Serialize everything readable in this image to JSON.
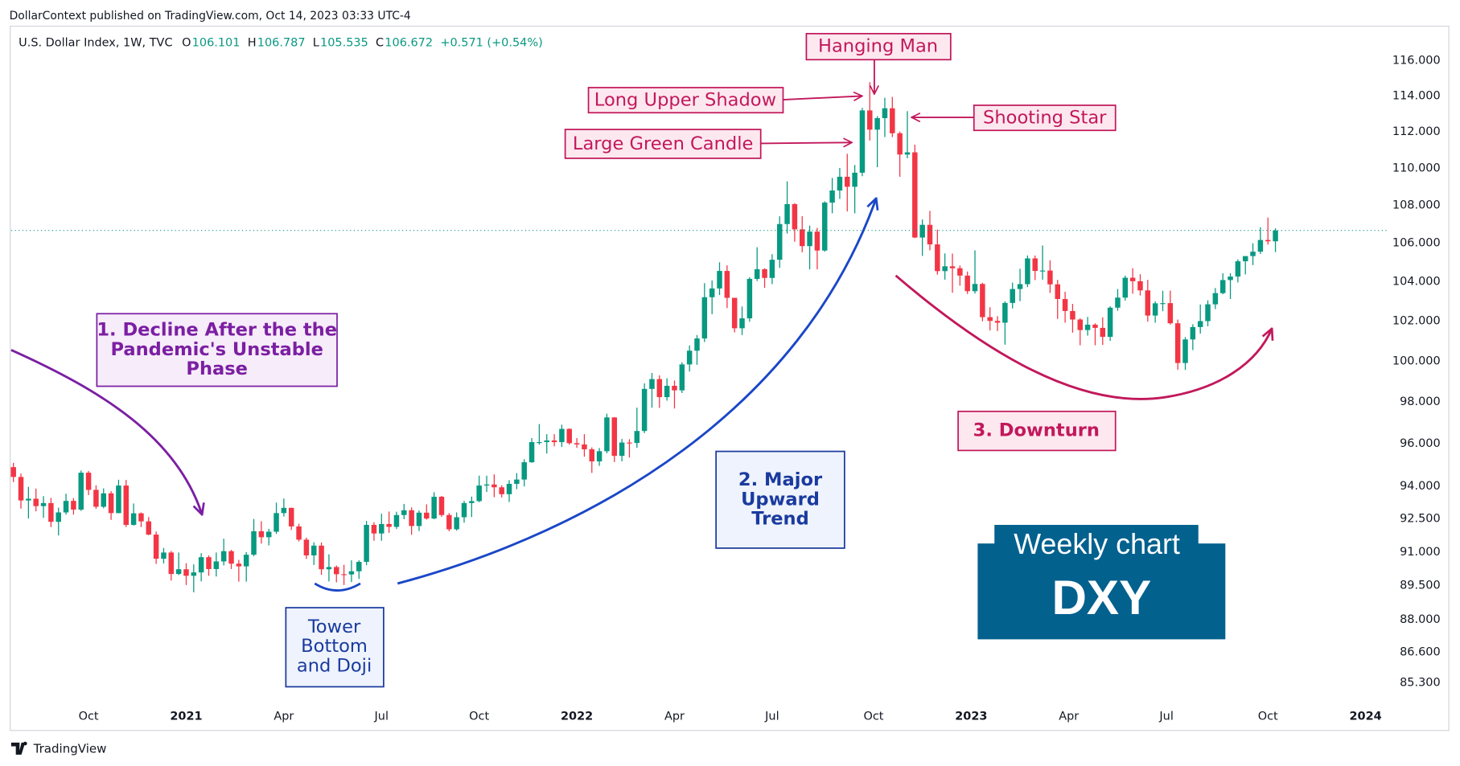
{
  "top_note": "DollarContext published on TradingView.com, Oct 14, 2023 03:33 UTC-4",
  "footer": {
    "brand": "TradingView"
  },
  "chart_data": {
    "type": "candlestick",
    "header": {
      "symbol": "U.S. Dollar Index, 1W, TVC",
      "items": [
        {
          "label": "O",
          "value": "106.101"
        },
        {
          "label": "H",
          "value": "106.787"
        },
        {
          "label": "L",
          "value": "105.535"
        },
        {
          "label": "C",
          "value": "106.672"
        }
      ],
      "change": "+0.571 (+0.54%)"
    },
    "up_color": "#089981",
    "down_color": "#f23645",
    "log_scale": true,
    "grid": false,
    "last_price_line": true,
    "ylim": [
      84.4,
      118
    ],
    "yticks": [
      {
        "value": 116,
        "label": "116.000"
      },
      {
        "value": 114,
        "label": "114.000"
      },
      {
        "value": 112,
        "label": "112.000"
      },
      {
        "value": 110,
        "label": "110.000"
      },
      {
        "value": 108,
        "label": "108.000"
      },
      {
        "value": 106,
        "label": "106.000"
      },
      {
        "value": 104,
        "label": "104.000"
      },
      {
        "value": 102,
        "label": "102.000"
      },
      {
        "value": 100,
        "label": "100.000"
      },
      {
        "value": 98,
        "label": "98.000"
      },
      {
        "value": 96,
        "label": "96.000"
      },
      {
        "value": 94,
        "label": "94.000"
      },
      {
        "value": 92.5,
        "label": "92.500"
      },
      {
        "value": 91,
        "label": "91.000"
      },
      {
        "value": 89.5,
        "label": "89.500"
      },
      {
        "value": 88,
        "label": "88.000"
      },
      {
        "value": 86.6,
        "label": "86.600"
      },
      {
        "value": 85.3,
        "label": "85.300"
      }
    ],
    "xlim": [
      -0.3,
      182.9
    ],
    "xticks": [
      {
        "value": 10,
        "label": "Oct"
      },
      {
        "value": 23,
        "label": "2021"
      },
      {
        "value": 36,
        "label": "Apr"
      },
      {
        "value": 49,
        "label": "Jul"
      },
      {
        "value": 62,
        "label": "Oct"
      },
      {
        "value": 75,
        "label": "2022"
      },
      {
        "value": 88,
        "label": "Apr"
      },
      {
        "value": 101,
        "label": "Jul"
      },
      {
        "value": 114.5,
        "label": "Oct"
      },
      {
        "value": 127.5,
        "label": "2023"
      },
      {
        "value": 140.5,
        "label": "Apr"
      },
      {
        "value": 153.5,
        "label": "Jul"
      },
      {
        "value": 167,
        "label": "Oct"
      },
      {
        "value": 180,
        "label": "2024"
      }
    ],
    "candles": [
      [
        94.9,
        95.1,
        94.2,
        94.44
      ],
      [
        94.44,
        94.6,
        92.98,
        93.35
      ],
      [
        93.35,
        93.98,
        92.52,
        93.43
      ],
      [
        93.43,
        93.9,
        92.85,
        93.09
      ],
      [
        93.09,
        93.55,
        92.55,
        93.23
      ],
      [
        93.23,
        93.47,
        92.13,
        92.37
      ],
      [
        92.37,
        93.02,
        91.75,
        92.8
      ],
      [
        92.8,
        93.66,
        92.7,
        93.33
      ],
      [
        93.33,
        93.46,
        92.7,
        92.93
      ],
      [
        92.93,
        94.74,
        92.87,
        94.64
      ],
      [
        94.64,
        94.72,
        93.6,
        93.84
      ],
      [
        93.84,
        94.05,
        92.97,
        93.06
      ],
      [
        93.06,
        93.91,
        92.99,
        93.68
      ],
      [
        93.68,
        93.78,
        92.46,
        92.77
      ],
      [
        92.77,
        94.31,
        92.76,
        94.04
      ],
      [
        94.04,
        94.3,
        92.13,
        92.23
      ],
      [
        92.23,
        93.21,
        92.2,
        92.76
      ],
      [
        92.76,
        92.8,
        92.13,
        92.39
      ],
      [
        92.39,
        92.59,
        91.76,
        91.79
      ],
      [
        91.79,
        91.93,
        90.47,
        90.7
      ],
      [
        90.7,
        91.19,
        90.49,
        90.98
      ],
      [
        90.98,
        91.05,
        89.73,
        90.02
      ],
      [
        90.02,
        90.98,
        89.97,
        90.23
      ],
      [
        90.23,
        90.5,
        89.53,
        89.94
      ],
      [
        89.94,
        90.45,
        89.21,
        90.09
      ],
      [
        90.09,
        90.95,
        89.69,
        90.77
      ],
      [
        90.77,
        90.85,
        89.94,
        90.24
      ],
      [
        90.24,
        90.98,
        89.91,
        90.58
      ],
      [
        90.58,
        91.6,
        90.4,
        91.04
      ],
      [
        91.04,
        91.1,
        90.24,
        90.48
      ],
      [
        90.48,
        90.65,
        89.68,
        90.36
      ],
      [
        90.36,
        91.0,
        89.68,
        90.88
      ],
      [
        90.88,
        92.5,
        90.81,
        91.94
      ],
      [
        91.94,
        92.4,
        91.38,
        91.67
      ],
      [
        91.67,
        92.05,
        91.3,
        91.92
      ],
      [
        91.92,
        93.25,
        91.82,
        92.77
      ],
      [
        92.77,
        93.44,
        92.61,
        93.01
      ],
      [
        93.01,
        93.02,
        92.0,
        92.16
      ],
      [
        92.16,
        92.28,
        91.48,
        91.56
      ],
      [
        91.56,
        91.65,
        90.69,
        90.85
      ],
      [
        90.85,
        91.44,
        90.42,
        91.29
      ],
      [
        91.29,
        91.43,
        89.98,
        90.23
      ],
      [
        90.23,
        90.9,
        89.69,
        90.33
      ],
      [
        90.33,
        90.4,
        89.65,
        90.01
      ],
      [
        90.01,
        90.43,
        89.53,
        90.0
      ],
      [
        90.0,
        90.63,
        89.66,
        90.14
      ],
      [
        90.14,
        90.63,
        89.8,
        90.56
      ],
      [
        90.56,
        92.41,
        90.41,
        92.23
      ],
      [
        92.23,
        92.35,
        91.51,
        91.84
      ],
      [
        91.84,
        92.74,
        91.51,
        92.27
      ],
      [
        92.27,
        92.84,
        91.87,
        92.14
      ],
      [
        92.14,
        92.83,
        92.04,
        92.68
      ],
      [
        92.68,
        93.19,
        92.49,
        92.9
      ],
      [
        92.9,
        93.03,
        91.78,
        92.18
      ],
      [
        92.18,
        92.89,
        91.95,
        92.79
      ],
      [
        92.79,
        93.17,
        92.47,
        92.52
      ],
      [
        92.52,
        93.73,
        92.49,
        93.52
      ],
      [
        93.52,
        93.56,
        92.6,
        92.68
      ],
      [
        92.68,
        92.77,
        91.94,
        92.03
      ],
      [
        92.03,
        92.8,
        91.97,
        92.58
      ],
      [
        92.58,
        93.33,
        92.33,
        93.23
      ],
      [
        93.23,
        93.53,
        92.59,
        93.32
      ],
      [
        93.32,
        94.5,
        93.27,
        94.04
      ],
      [
        94.04,
        94.5,
        93.74,
        94.09
      ],
      [
        94.09,
        94.56,
        93.5,
        93.96
      ],
      [
        93.96,
        94.05,
        93.49,
        93.64
      ],
      [
        93.64,
        94.29,
        93.28,
        94.12
      ],
      [
        94.12,
        94.62,
        93.87,
        94.32
      ],
      [
        94.32,
        95.27,
        94.0,
        95.13
      ],
      [
        95.13,
        96.27,
        95.1,
        96.08
      ],
      [
        96.08,
        96.94,
        95.96,
        96.08
      ],
      [
        96.08,
        96.46,
        95.54,
        96.16
      ],
      [
        96.16,
        96.46,
        95.88,
        96.08
      ],
      [
        96.08,
        96.91,
        95.85,
        96.71
      ],
      [
        96.71,
        96.74,
        95.96,
        96.03
      ],
      [
        96.03,
        96.27,
        95.81,
        95.97
      ],
      [
        95.97,
        96.46,
        95.39,
        95.74
      ],
      [
        95.74,
        95.83,
        94.63,
        95.17
      ],
      [
        95.17,
        95.8,
        94.96,
        95.65
      ],
      [
        95.65,
        97.44,
        95.55,
        97.26
      ],
      [
        97.26,
        97.27,
        95.14,
        95.43
      ],
      [
        95.43,
        96.23,
        95.17,
        96.06
      ],
      [
        96.06,
        96.22,
        95.35,
        96.04
      ],
      [
        96.04,
        97.73,
        95.81,
        96.61
      ],
      [
        96.61,
        98.91,
        96.51,
        98.64
      ],
      [
        98.64,
        99.42,
        97.73,
        99.12
      ],
      [
        99.12,
        99.3,
        97.72,
        98.24
      ],
      [
        98.24,
        99.16,
        98.07,
        98.79
      ],
      [
        98.79,
        99.05,
        97.69,
        98.57
      ],
      [
        98.57,
        99.95,
        98.44,
        99.84
      ],
      [
        99.84,
        100.78,
        99.49,
        100.52
      ],
      [
        100.52,
        101.3,
        99.82,
        101.13
      ],
      [
        101.13,
        103.93,
        100.95,
        103.21
      ],
      [
        103.21,
        104.07,
        102.35,
        103.66
      ],
      [
        103.66,
        105.01,
        103.32,
        104.56
      ],
      [
        104.56,
        104.85,
        102.66,
        103.18
      ],
      [
        103.18,
        103.18,
        101.43,
        101.64
      ],
      [
        101.64,
        102.74,
        101.3,
        102.14
      ],
      [
        102.14,
        104.24,
        101.97,
        104.15
      ],
      [
        104.15,
        105.79,
        104.04,
        104.65
      ],
      [
        104.65,
        104.7,
        103.69,
        104.2
      ],
      [
        104.2,
        105.43,
        103.88,
        105.14
      ],
      [
        105.14,
        107.42,
        104.72,
        107.01
      ],
      [
        107.01,
        109.29,
        106.51,
        108.07
      ],
      [
        108.07,
        108.12,
        106.08,
        106.73
      ],
      [
        106.73,
        107.43,
        105.53,
        105.85
      ],
      [
        105.85,
        106.93,
        104.64,
        106.61
      ],
      [
        106.61,
        106.81,
        104.64,
        105.62
      ],
      [
        105.62,
        108.22,
        105.56,
        108.15
      ],
      [
        108.15,
        109.48,
        107.58,
        108.8
      ],
      [
        108.8,
        110.02,
        108.35,
        109.54
      ],
      [
        109.54,
        110.79,
        107.68,
        109.0
      ],
      [
        109.0,
        110.18,
        107.58,
        109.76
      ],
      [
        109.76,
        113.33,
        109.57,
        113.19
      ],
      [
        113.19,
        114.78,
        111.52,
        112.12
      ],
      [
        112.12,
        112.87,
        110.06,
        112.76
      ],
      [
        112.76,
        113.9,
        111.71,
        113.31
      ],
      [
        113.31,
        113.95,
        111.71,
        111.92
      ],
      [
        111.92,
        112.01,
        109.54,
        110.75
      ],
      [
        110.75,
        113.15,
        110.55,
        110.87
      ],
      [
        110.87,
        111.29,
        106.27,
        106.3
      ],
      [
        106.3,
        107.25,
        105.34,
        106.97
      ],
      [
        106.97,
        107.71,
        105.63,
        105.94
      ],
      [
        105.94,
        106.72,
        104.37,
        104.55
      ],
      [
        104.55,
        105.47,
        104.11,
        104.8
      ],
      [
        104.8,
        105.46,
        103.44,
        104.7
      ],
      [
        104.7,
        104.84,
        103.8,
        104.32
      ],
      [
        104.32,
        104.53,
        103.38,
        103.52
      ],
      [
        103.52,
        105.63,
        103.4,
        103.89
      ],
      [
        103.89,
        103.95,
        101.99,
        102.2
      ],
      [
        102.2,
        102.7,
        101.53,
        102.01
      ],
      [
        102.01,
        102.25,
        101.5,
        101.92
      ],
      [
        101.92,
        103.0,
        100.82,
        102.92
      ],
      [
        102.92,
        103.96,
        102.64,
        103.63
      ],
      [
        103.63,
        104.67,
        103.01,
        103.88
      ],
      [
        103.88,
        105.36,
        103.73,
        105.21
      ],
      [
        105.21,
        105.36,
        104.09,
        104.56
      ],
      [
        104.56,
        105.88,
        104.11,
        104.58
      ],
      [
        104.58,
        105.11,
        103.43,
        103.87
      ],
      [
        103.87,
        104.1,
        102.11,
        103.12
      ],
      [
        103.12,
        103.49,
        101.92,
        102.51
      ],
      [
        102.51,
        102.87,
        101.42,
        102.08
      ],
      [
        102.08,
        102.14,
        100.79,
        101.55
      ],
      [
        101.55,
        102.21,
        101.27,
        101.82
      ],
      [
        101.82,
        101.89,
        100.79,
        101.66
      ],
      [
        101.66,
        102.19,
        100.81,
        101.21
      ],
      [
        101.21,
        102.75,
        101.01,
        102.68
      ],
      [
        102.68,
        103.63,
        102.52,
        103.19
      ],
      [
        103.19,
        104.32,
        103.04,
        104.21
      ],
      [
        104.21,
        104.7,
        103.39,
        104.03
      ],
      [
        104.03,
        104.39,
        103.3,
        103.56
      ],
      [
        103.56,
        104.1,
        101.97,
        102.28
      ],
      [
        102.28,
        103.0,
        101.92,
        102.9
      ],
      [
        102.9,
        103.54,
        102.5,
        102.91
      ],
      [
        102.91,
        103.55,
        101.83,
        101.89
      ],
      [
        101.89,
        102.08,
        99.58,
        99.91
      ],
      [
        99.91,
        101.2,
        99.57,
        101.08
      ],
      [
        101.08,
        101.84,
        100.55,
        101.7
      ],
      [
        101.7,
        102.84,
        101.37,
        102.0
      ],
      [
        102.0,
        103.05,
        101.74,
        102.85
      ],
      [
        102.85,
        103.68,
        102.61,
        103.42
      ],
      [
        103.42,
        104.44,
        103.36,
        104.09
      ],
      [
        104.09,
        104.44,
        103.12,
        104.27
      ],
      [
        104.27,
        105.16,
        103.97,
        105.06
      ],
      [
        105.06,
        105.16,
        104.38,
        105.33
      ],
      [
        105.33,
        106.0,
        104.86,
        105.56
      ],
      [
        105.56,
        106.84,
        105.44,
        106.17
      ],
      [
        106.17,
        107.35,
        105.93,
        106.101
      ],
      [
        106.101,
        106.787,
        105.535,
        106.672
      ]
    ],
    "annotations": [
      {
        "lines": [
          "1. Decline After the the",
          "Pandemic's Unstable",
          "Phase"
        ]
      },
      {
        "lines": [
          "Tower",
          "Bottom",
          "and Doji"
        ]
      },
      {
        "lines": [
          "2. Major",
          "Upward",
          "Trend"
        ]
      },
      {
        "lines": [
          "3. Downturn"
        ]
      },
      {
        "lines": [
          "Hanging Man"
        ]
      },
      {
        "lines": [
          "Long Upper Shadow"
        ]
      },
      {
        "lines": [
          "Large Green Candle"
        ]
      },
      {
        "lines": [
          "Shooting Star"
        ]
      }
    ],
    "badge": {
      "lines": [
        "Weekly chart",
        "DXY"
      ]
    }
  }
}
